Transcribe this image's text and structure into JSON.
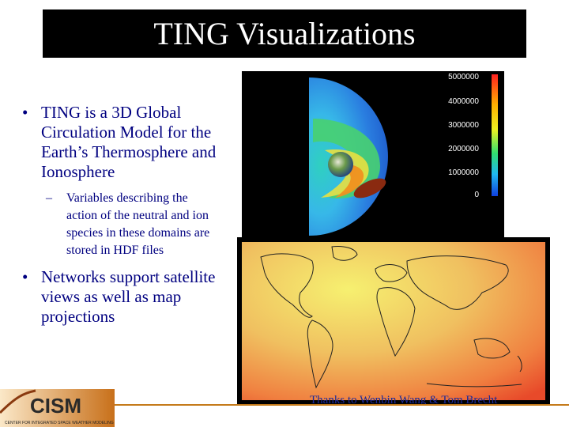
{
  "slide": {
    "title": "TING Visualizations",
    "bullets": {
      "b1": "TING is a 3D Global Circulation Model for the Earth’s Thermosphere and Ionosphere",
      "b1_sub": "Variables describing the action of the neutral and ion species in these domains are stored in HDF files",
      "b2": "Networks support satellite views as well as map projections"
    },
    "bullet_glyph": "•",
    "sub_glyph": "–"
  },
  "colorbar": {
    "labels": [
      "5000000",
      "4000000",
      "3000000",
      "2000000",
      "1000000",
      "0"
    ]
  },
  "credit": "Thanks to Wenbin Wang & Tom Brecht",
  "logo": {
    "text": "CISM",
    "subtext": "CENTER FOR INTEGRATED SPACE WEATHER MODELING"
  },
  "colors": {
    "title_bg": "#000000",
    "bullet_text": "#000080",
    "credit_text": "#1c2a9a",
    "rule": "#c47a1a"
  }
}
